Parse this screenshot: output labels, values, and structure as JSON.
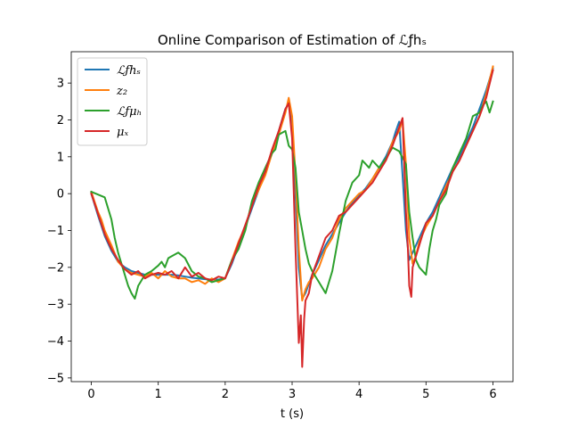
{
  "chart_data": {
    "type": "line",
    "title": "Online Comparison of Estimation of ℒƒhₛ",
    "xlabel": "t (s)",
    "ylabel": "",
    "xlim": [
      -0.3,
      6.3
    ],
    "ylim": [
      -5.1,
      3.85
    ],
    "xticks": [
      0,
      1,
      2,
      3,
      4,
      5,
      6
    ],
    "yticks": [
      -5,
      -4,
      -3,
      -2,
      -1,
      0,
      1,
      2,
      3
    ],
    "grid": false,
    "legend_position": "top-left",
    "series": [
      {
        "name": "ℒƒhₛ",
        "color": "#1f77b4",
        "x": [
          0.0,
          0.1,
          0.2,
          0.3,
          0.4,
          0.5,
          0.6,
          0.7,
          0.8,
          0.9,
          1.0,
          1.1,
          1.2,
          1.3,
          1.4,
          1.5,
          1.6,
          1.7,
          1.8,
          1.9,
          2.0,
          2.1,
          2.2,
          2.3,
          2.4,
          2.5,
          2.6,
          2.7,
          2.8,
          2.85,
          2.9,
          2.95,
          3.0,
          3.05,
          3.1,
          3.15,
          3.2,
          3.3,
          3.4,
          3.5,
          3.6,
          3.7,
          3.8,
          3.9,
          4.0,
          4.1,
          4.2,
          4.3,
          4.4,
          4.5,
          4.55,
          4.6,
          4.65,
          4.7,
          4.75,
          4.8,
          4.9,
          5.0,
          5.1,
          5.2,
          5.3,
          5.4,
          5.5,
          5.6,
          5.7,
          5.8,
          5.9,
          6.0
        ],
        "y": [
          0.0,
          -0.6,
          -1.15,
          -1.55,
          -1.85,
          -2.0,
          -2.1,
          -2.15,
          -2.2,
          -2.2,
          -2.2,
          -2.2,
          -2.2,
          -2.22,
          -2.25,
          -2.28,
          -2.3,
          -2.32,
          -2.33,
          -2.33,
          -2.3,
          -1.9,
          -1.4,
          -0.9,
          -0.4,
          0.1,
          0.6,
          1.1,
          1.7,
          2.0,
          2.3,
          2.45,
          1.8,
          0.0,
          -2.0,
          -2.85,
          -2.7,
          -2.2,
          -1.8,
          -1.4,
          -1.1,
          -0.8,
          -0.5,
          -0.25,
          -0.05,
          0.15,
          0.4,
          0.7,
          1.0,
          1.4,
          1.7,
          1.95,
          0.5,
          -1.0,
          -1.8,
          -1.6,
          -1.2,
          -0.8,
          -0.5,
          -0.1,
          0.3,
          0.7,
          1.0,
          1.4,
          1.8,
          2.3,
          2.8,
          3.4
        ]
      },
      {
        "name": "z₂",
        "color": "#ff7f0e",
        "x": [
          0.0,
          0.1,
          0.15,
          0.2,
          0.3,
          0.4,
          0.5,
          0.6,
          0.7,
          0.8,
          0.9,
          1.0,
          1.1,
          1.2,
          1.3,
          1.4,
          1.5,
          1.6,
          1.7,
          1.8,
          1.9,
          2.0,
          2.1,
          2.2,
          2.3,
          2.4,
          2.5,
          2.6,
          2.7,
          2.8,
          2.9,
          2.95,
          3.0,
          3.05,
          3.1,
          3.15,
          3.2,
          3.25,
          3.3,
          3.4,
          3.5,
          3.6,
          3.7,
          3.8,
          3.9,
          4.0,
          4.1,
          4.2,
          4.3,
          4.4,
          4.5,
          4.6,
          4.65,
          4.7,
          4.75,
          4.8,
          4.85,
          4.9,
          5.0,
          5.1,
          5.2,
          5.3,
          5.4,
          5.5,
          5.6,
          5.7,
          5.8,
          5.9,
          6.0
        ],
        "y": [
          0.05,
          -0.5,
          -0.7,
          -1.0,
          -1.4,
          -1.85,
          -2.05,
          -2.15,
          -2.2,
          -2.25,
          -2.15,
          -2.3,
          -2.1,
          -2.25,
          -2.3,
          -2.3,
          -2.4,
          -2.35,
          -2.45,
          -2.3,
          -2.4,
          -2.3,
          -1.8,
          -1.3,
          -0.9,
          -0.3,
          0.1,
          0.5,
          1.1,
          1.6,
          2.2,
          2.6,
          2.1,
          0.5,
          -1.5,
          -2.9,
          -2.6,
          -2.4,
          -2.3,
          -2.0,
          -1.5,
          -1.2,
          -0.7,
          -0.4,
          -0.2,
          0.0,
          0.1,
          0.4,
          0.7,
          0.9,
          1.4,
          1.7,
          2.0,
          0.8,
          -1.2,
          -1.9,
          -1.7,
          -1.3,
          -0.9,
          -0.6,
          -0.2,
          0.2,
          0.6,
          0.9,
          1.3,
          1.7,
          2.1,
          2.7,
          3.45
        ]
      },
      {
        "name": "ℒƒμₕ",
        "color": "#2ca02c",
        "x": [
          0.0,
          0.2,
          0.3,
          0.35,
          0.4,
          0.5,
          0.55,
          0.6,
          0.65,
          0.7,
          0.8,
          0.9,
          1.0,
          1.05,
          1.1,
          1.15,
          1.2,
          1.3,
          1.4,
          1.5,
          1.6,
          1.7,
          1.8,
          1.9,
          2.0,
          2.1,
          2.2,
          2.3,
          2.4,
          2.5,
          2.6,
          2.7,
          2.75,
          2.8,
          2.85,
          2.9,
          2.95,
          3.0,
          3.05,
          3.1,
          3.15,
          3.2,
          3.25,
          3.3,
          3.4,
          3.5,
          3.6,
          3.7,
          3.8,
          3.9,
          4.0,
          4.05,
          4.1,
          4.15,
          4.2,
          4.3,
          4.4,
          4.5,
          4.6,
          4.7,
          4.75,
          4.8,
          4.85,
          4.9,
          5.0,
          5.05,
          5.1,
          5.15,
          5.2,
          5.3,
          5.35,
          5.4,
          5.5,
          5.6,
          5.65,
          5.7,
          5.8,
          5.85,
          5.9,
          5.95,
          6.0
        ],
        "y": [
          0.05,
          -0.1,
          -0.7,
          -1.2,
          -1.6,
          -2.2,
          -2.5,
          -2.7,
          -2.85,
          -2.5,
          -2.2,
          -2.1,
          -1.95,
          -1.85,
          -2.0,
          -1.75,
          -1.7,
          -1.6,
          -1.75,
          -2.1,
          -2.25,
          -2.3,
          -2.4,
          -2.35,
          -2.3,
          -1.8,
          -1.5,
          -1.0,
          -0.2,
          0.3,
          0.7,
          1.1,
          1.2,
          1.6,
          1.65,
          1.7,
          1.3,
          1.2,
          0.7,
          -0.5,
          -1.0,
          -1.5,
          -1.9,
          -2.1,
          -2.4,
          -2.7,
          -2.1,
          -1.1,
          -0.2,
          0.3,
          0.5,
          0.9,
          0.8,
          0.7,
          0.9,
          0.7,
          0.95,
          1.25,
          1.15,
          0.8,
          -0.5,
          -1.2,
          -1.8,
          -2.0,
          -2.2,
          -1.5,
          -1.0,
          -0.7,
          -0.3,
          0.0,
          0.4,
          0.7,
          1.1,
          1.5,
          1.8,
          2.1,
          2.2,
          2.4,
          2.5,
          2.2,
          2.5
        ]
      },
      {
        "name": "μₓ",
        "color": "#d62728",
        "x": [
          0.0,
          0.1,
          0.2,
          0.3,
          0.4,
          0.5,
          0.6,
          0.7,
          0.8,
          0.9,
          1.0,
          1.1,
          1.2,
          1.3,
          1.4,
          1.5,
          1.6,
          1.7,
          1.8,
          1.9,
          2.0,
          2.1,
          2.2,
          2.3,
          2.4,
          2.5,
          2.6,
          2.7,
          2.8,
          2.9,
          2.95,
          3.0,
          3.05,
          3.08,
          3.1,
          3.13,
          3.15,
          3.18,
          3.2,
          3.25,
          3.3,
          3.4,
          3.5,
          3.6,
          3.7,
          3.8,
          3.9,
          4.0,
          4.1,
          4.2,
          4.3,
          4.4,
          4.5,
          4.6,
          4.65,
          4.7,
          4.73,
          4.75,
          4.78,
          4.8,
          4.85,
          4.9,
          5.0,
          5.1,
          5.2,
          5.3,
          5.4,
          5.5,
          5.6,
          5.7,
          5.8,
          5.9,
          6.0
        ],
        "y": [
          0.0,
          -0.55,
          -1.1,
          -1.5,
          -1.8,
          -2.05,
          -2.2,
          -2.1,
          -2.3,
          -2.2,
          -2.15,
          -2.2,
          -2.1,
          -2.3,
          -2.0,
          -2.25,
          -2.15,
          -2.3,
          -2.35,
          -2.25,
          -2.3,
          -1.85,
          -1.35,
          -0.85,
          -0.35,
          0.2,
          0.6,
          1.2,
          1.7,
          2.3,
          2.45,
          1.5,
          -1.5,
          -3.0,
          -4.05,
          -3.3,
          -4.7,
          -3.4,
          -2.9,
          -2.7,
          -2.2,
          -1.7,
          -1.2,
          -1.0,
          -0.6,
          -0.5,
          -0.3,
          -0.1,
          0.1,
          0.3,
          0.6,
          0.9,
          1.3,
          1.8,
          2.05,
          -0.5,
          -1.5,
          -2.5,
          -2.8,
          -2.0,
          -1.7,
          -1.4,
          -0.8,
          -0.6,
          -0.2,
          0.1,
          0.6,
          0.9,
          1.3,
          1.7,
          2.1,
          2.6,
          3.35
        ]
      }
    ]
  }
}
